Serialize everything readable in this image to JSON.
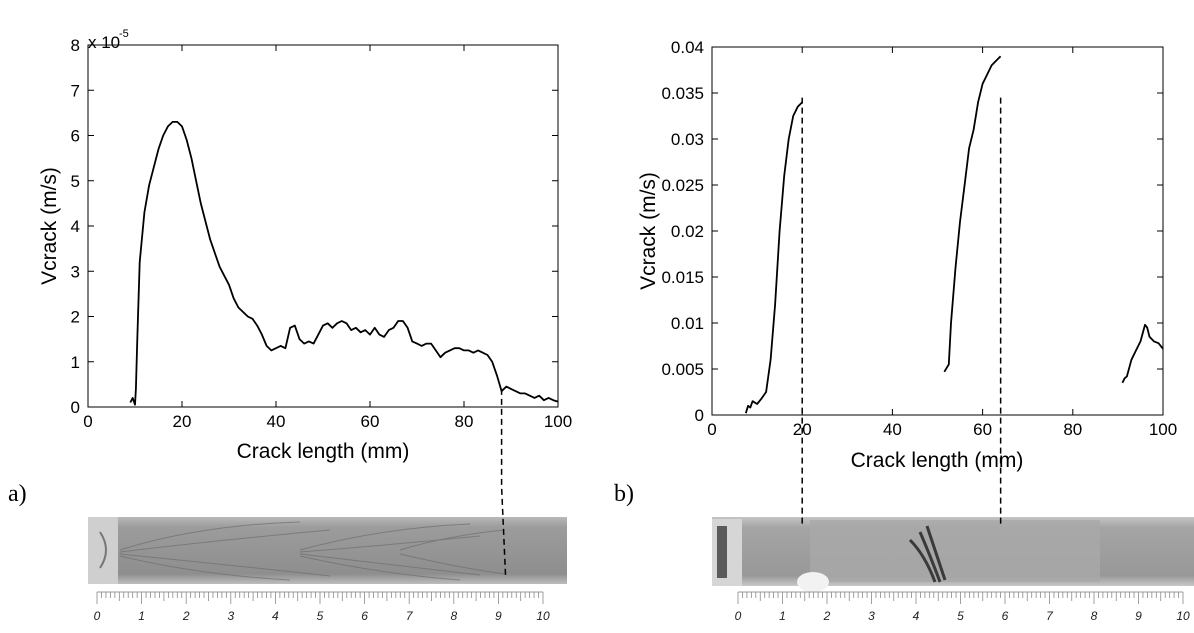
{
  "chart_data": [
    {
      "panel_label": "a)",
      "type": "line",
      "xlabel": "Crack length (mm)",
      "ylabel": "Vcrack (m/s)",
      "xlim": [
        0,
        100
      ],
      "ylim": [
        0,
        8e-05
      ],
      "x_ticks": [
        0,
        20,
        40,
        60,
        80,
        100
      ],
      "y_tick_labels": [
        "0",
        "1",
        "2",
        "3",
        "4",
        "5",
        "6",
        "7",
        "8"
      ],
      "y_multiplier_base": "x 10",
      "y_multiplier_exp": "-5",
      "dashed_marker_x": 88,
      "series": [
        {
          "x": [
            9,
            9.5,
            10,
            10.2,
            10.5,
            11,
            12,
            13,
            14,
            15,
            16,
            17,
            18,
            19,
            20,
            21,
            22,
            23,
            24,
            25,
            26,
            27,
            28,
            29,
            30,
            31,
            32,
            33,
            34,
            35,
            36,
            37,
            38,
            39,
            40,
            41,
            42,
            43,
            44,
            45,
            46,
            47,
            48,
            49,
            50,
            51,
            52,
            53,
            54,
            55,
            56,
            57,
            58,
            59,
            60,
            61,
            62,
            63,
            64,
            65,
            66,
            67,
            68,
            69,
            70,
            71,
            72,
            73,
            74,
            75,
            76,
            77,
            78,
            79,
            80,
            81,
            82,
            83,
            84,
            85,
            86,
            87,
            88,
            89,
            90,
            91,
            92,
            93,
            94,
            95,
            96,
            97,
            98,
            99,
            100
          ],
          "y": [
            1e-06,
            2e-06,
            5e-07,
            4e-06,
            1.5e-05,
            3.2e-05,
            4.3e-05,
            4.9e-05,
            5.3e-05,
            5.7e-05,
            6e-05,
            6.2e-05,
            6.3e-05,
            6.3e-05,
            6.2e-05,
            5.9e-05,
            5.5e-05,
            5e-05,
            4.5e-05,
            4.1e-05,
            3.7e-05,
            3.4e-05,
            3.1e-05,
            2.9e-05,
            2.7e-05,
            2.4e-05,
            2.2e-05,
            2.1e-05,
            2e-05,
            1.95e-05,
            1.8e-05,
            1.6e-05,
            1.35e-05,
            1.25e-05,
            1.3e-05,
            1.35e-05,
            1.3e-05,
            1.75e-05,
            1.8e-05,
            1.5e-05,
            1.4e-05,
            1.45e-05,
            1.4e-05,
            1.6e-05,
            1.8e-05,
            1.85e-05,
            1.75e-05,
            1.85e-05,
            1.9e-05,
            1.85e-05,
            1.7e-05,
            1.75e-05,
            1.65e-05,
            1.7e-05,
            1.6e-05,
            1.75e-05,
            1.6e-05,
            1.55e-05,
            1.7e-05,
            1.75e-05,
            1.9e-05,
            1.9e-05,
            1.75e-05,
            1.45e-05,
            1.4e-05,
            1.35e-05,
            1.4e-05,
            1.4e-05,
            1.25e-05,
            1.1e-05,
            1.2e-05,
            1.25e-05,
            1.3e-05,
            1.3e-05,
            1.25e-05,
            1.25e-05,
            1.2e-05,
            1.25e-05,
            1.2e-05,
            1.15e-05,
            1e-05,
            7e-06,
            3.5e-06,
            4.5e-06,
            4e-06,
            3.5e-06,
            3e-06,
            3e-06,
            2.5e-06,
            2e-06,
            2.5e-06,
            1.5e-06,
            2e-06,
            1.5e-06,
            1.2e-06
          ]
        }
      ]
    },
    {
      "panel_label": "b)",
      "type": "line",
      "xlabel": "Crack length (mm)",
      "ylabel": "Vcrack (m/s)",
      "xlim": [
        0,
        100
      ],
      "ylim": [
        0,
        0.04
      ],
      "x_ticks": [
        0,
        20,
        40,
        60,
        80,
        100
      ],
      "y_tick_labels": [
        "0",
        "0.005",
        "0.01",
        "0.015",
        "0.02",
        "0.025",
        "0.03",
        "0.035",
        "0.04"
      ],
      "dashed_marker_x": [
        20,
        64
      ],
      "series": [
        {
          "x": [
            7.5,
            8,
            8.5,
            9,
            10,
            11,
            12,
            13,
            14,
            15,
            16,
            17,
            18,
            19,
            20
          ],
          "y": [
            0.0002,
            0.001,
            0.0008,
            0.0015,
            0.0012,
            0.0018,
            0.0025,
            0.006,
            0.012,
            0.02,
            0.026,
            0.03,
            0.0325,
            0.0335,
            0.034
          ]
        },
        {
          "x": [
            51.5,
            52.5,
            53,
            54,
            55,
            56,
            57,
            58,
            59,
            60,
            61,
            62,
            63,
            64
          ],
          "y": [
            0.0047,
            0.0055,
            0.01,
            0.016,
            0.021,
            0.025,
            0.029,
            0.031,
            0.034,
            0.036,
            0.037,
            0.038,
            0.0385,
            0.039
          ]
        },
        {
          "x": [
            91,
            91.5,
            92,
            93,
            94,
            95,
            96,
            96.5,
            97,
            98,
            99,
            100
          ],
          "y": [
            0.0035,
            0.004,
            0.0042,
            0.006,
            0.007,
            0.008,
            0.0098,
            0.0095,
            0.0085,
            0.008,
            0.0078,
            0.0072
          ]
        }
      ]
    }
  ],
  "rulers": [
    {
      "labels": [
        "0",
        "1",
        "2",
        "3",
        "4",
        "5",
        "6",
        "7",
        "8",
        "9",
        "10"
      ]
    },
    {
      "labels": [
        "0",
        "1",
        "2",
        "3",
        "4",
        "5",
        "6",
        "7",
        "8",
        "9",
        "10"
      ]
    }
  ],
  "colors": {
    "specimen_body": "#9a9a9a",
    "specimen_dark": "#6f6f6f",
    "clamp": "#d8d8d8",
    "line": "#000000"
  }
}
